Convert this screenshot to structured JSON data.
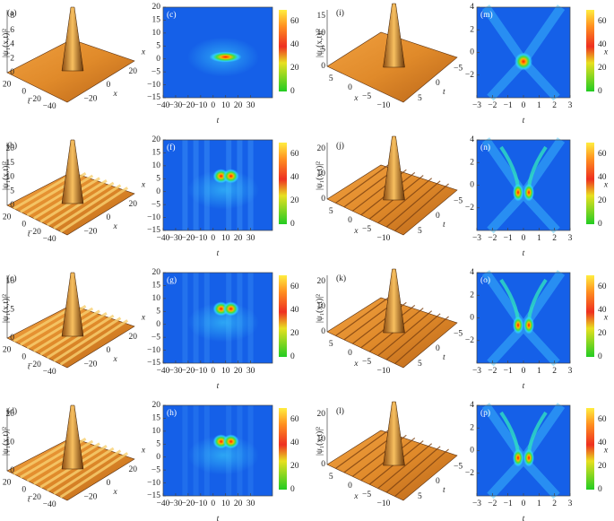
{
  "panels": [
    {
      "label": "(a)",
      "zlabel": "|ψ₁(x,t)|²",
      "zticks": [
        "8",
        "6",
        "4",
        "2",
        "0"
      ],
      "tlabel": "t",
      "tticks": [
        "20",
        "0",
        "−20",
        "−40"
      ],
      "xlabel": "x",
      "xticks": [
        "20",
        "0",
        "−20"
      ]
    },
    {
      "label": "(c)",
      "xlabel": "t",
      "ylabel": "x",
      "yticks": [
        "20",
        "15",
        "10",
        "5",
        "0",
        "−5",
        "−10",
        "−15"
      ],
      "xticks": [
        "−40",
        "−30",
        "−20",
        "−10",
        "0",
        "10",
        "20",
        "30"
      ],
      "cbticks": [
        "60",
        "40",
        "20",
        "0"
      ]
    },
    {
      "label": "(i)",
      "zlabel": "|ψ₁(x,t)|²",
      "zticks": [
        "15",
        "10",
        "5",
        "0"
      ],
      "tlabel": "t",
      "tticks": [
        "−5",
        "0",
        "5"
      ],
      "xlabel": "x",
      "xticks": [
        "5",
        "0",
        "−5",
        "−10"
      ]
    },
    {
      "label": "(m)",
      "xlabel": "t",
      "ylabel": "x",
      "yticks": [
        "4",
        "2",
        "0",
        "−2"
      ],
      "xticks": [
        "−3",
        "−2",
        "−1",
        "0",
        "1",
        "2",
        "3"
      ],
      "cbticks": [
        "60",
        "40",
        "20",
        "0"
      ]
    },
    {
      "label": "(b)",
      "zlabel": "|ψ₁(x,t)|²",
      "zticks": [
        "20",
        "15",
        "10",
        "5",
        "0"
      ],
      "tlabel": "t",
      "tticks": [
        "20",
        "0",
        "−20",
        "−40"
      ],
      "xlabel": "x",
      "xticks": [
        "20",
        "0",
        "−20"
      ]
    },
    {
      "label": "(f)",
      "xlabel": "t",
      "ylabel": "x",
      "yticks": [
        "20",
        "15",
        "10",
        "5",
        "0",
        "−5",
        "−10",
        "−15"
      ],
      "xticks": [
        "−40",
        "−30",
        "−20",
        "−10",
        "0",
        "10",
        "20",
        "30"
      ],
      "cbticks": [
        "60",
        "40",
        "20",
        "0"
      ]
    },
    {
      "label": "(j)",
      "zlabel": "|ψ₁(x,t)|²",
      "zticks": [
        "20",
        "10",
        "0"
      ],
      "tlabel": "t",
      "tticks": [
        "−5",
        "0",
        "5"
      ],
      "xlabel": "x",
      "xticks": [
        "5",
        "0",
        "−5",
        "−10"
      ]
    },
    {
      "label": "(n)",
      "xlabel": "t",
      "ylabel": "x",
      "yticks": [
        "4",
        "2",
        "0",
        "−2"
      ],
      "xticks": [
        "−3",
        "−2",
        "−1",
        "0",
        "1",
        "2",
        "3"
      ],
      "cbticks": [
        "60",
        "40",
        "20",
        "0"
      ]
    },
    {
      "label": "(c)",
      "zlabel": "|ψ₁(x,t)|²",
      "zticks": [
        "10",
        "5",
        "0"
      ],
      "tlabel": "t",
      "tticks": [
        "20",
        "0",
        "−20",
        "−40"
      ],
      "xlabel": "x",
      "xticks": [
        "20",
        "0",
        "−20"
      ]
    },
    {
      "label": "(g)",
      "xlabel": "t",
      "ylabel": "x",
      "yticks": [
        "20",
        "15",
        "10",
        "5",
        "0",
        "−5",
        "−10",
        "−15"
      ],
      "xticks": [
        "−40",
        "−30",
        "−20",
        "−10",
        "0",
        "10",
        "20",
        "30"
      ],
      "cbticks": [
        "60",
        "40",
        "20",
        "0"
      ]
    },
    {
      "label": "(k)",
      "zlabel": "|ψ₁(x,t)|²",
      "zticks": [
        "20",
        "10",
        "0"
      ],
      "tlabel": "t",
      "tticks": [
        "−5",
        "0",
        "5"
      ],
      "xlabel": "x",
      "xticks": [
        "5",
        "0",
        "−5",
        "−10"
      ]
    },
    {
      "label": "(o)",
      "xlabel": "t",
      "ylabel": "x",
      "yticks": [
        "4",
        "2",
        "0",
        "−2"
      ],
      "xticks": [
        "−3",
        "−2",
        "−1",
        "0",
        "1",
        "2",
        "3"
      ],
      "cbticks": [
        "60",
        "40",
        "20",
        "0"
      ]
    },
    {
      "label": "(d)",
      "zlabel": "|ψ₁(x,t)|²",
      "zticks": [
        "20",
        "10",
        "0"
      ],
      "tlabel": "t",
      "tticks": [
        "20",
        "0",
        "−20",
        "−40"
      ],
      "xlabel": "x",
      "xticks": [
        "20",
        "0",
        "−20"
      ]
    },
    {
      "label": "(h)",
      "xlabel": "t",
      "ylabel": "x",
      "yticks": [
        "20",
        "15",
        "10",
        "5",
        "0",
        "−5",
        "−10",
        "−15"
      ],
      "xticks": [
        "−40",
        "−30",
        "−20",
        "−10",
        "0",
        "10",
        "20",
        "30"
      ],
      "cbticks": [
        "60",
        "40",
        "20",
        "0"
      ]
    },
    {
      "label": "(l)",
      "zlabel": "|ψ₁(x,t)|²",
      "zticks": [
        "20",
        "10",
        "0"
      ],
      "tlabel": "t",
      "tticks": [
        "−5",
        "0",
        "5"
      ],
      "xlabel": "x",
      "xticks": [
        "5",
        "0",
        "−5",
        "−10"
      ]
    },
    {
      "label": "(p)",
      "xlabel": "t",
      "ylabel": "x",
      "yticks": [
        "4",
        "2",
        "0",
        "−2"
      ],
      "xticks": [
        "−3",
        "−2",
        "−1",
        "0",
        "1",
        "2",
        "3"
      ],
      "cbticks": [
        "60",
        "40",
        "20",
        "0"
      ]
    }
  ]
}
